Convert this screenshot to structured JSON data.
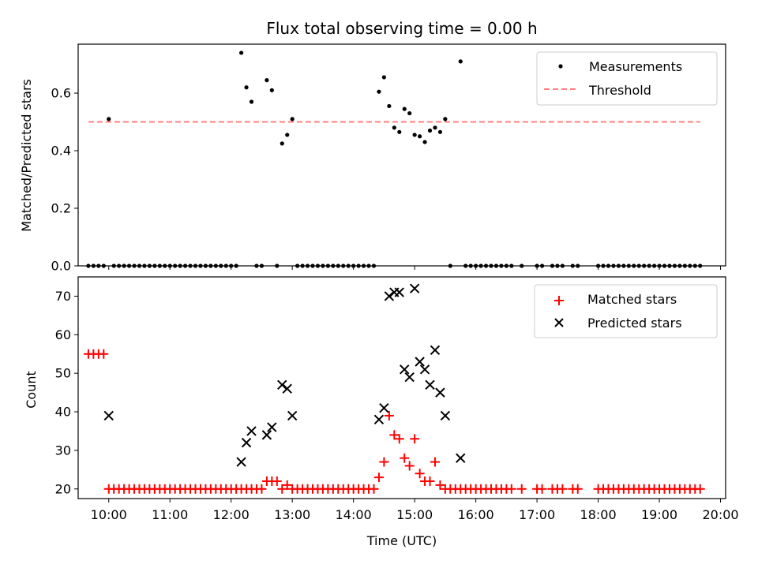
{
  "figure": {
    "title": "Flux total observing time = 0.00 h"
  },
  "chart_data": [
    {
      "type": "scatter",
      "ylabel": "Matched/Predicted stars",
      "xlabel": "",
      "xlim": [
        "09:30",
        "20:05"
      ],
      "ylim": [
        0,
        0.77
      ],
      "yticks": [
        0.0,
        0.2,
        0.4,
        0.6
      ],
      "ytick_labels": [
        "0.0",
        "0.2",
        "0.4",
        "0.6"
      ],
      "xticks": [
        "10:00",
        "11:00",
        "12:00",
        "13:00",
        "14:00",
        "15:00",
        "16:00",
        "17:00",
        "18:00",
        "19:00",
        "20:00"
      ],
      "show_xtick_labels": false,
      "grid": false,
      "legend": {
        "position": "top-right",
        "entries": [
          "Measurements",
          "Threshold"
        ]
      },
      "threshold": {
        "name": "Threshold",
        "y": 0.5,
        "x_start": "09:40",
        "x_end": "19:40",
        "color": "#ff7f7f",
        "style": "dashed"
      },
      "series": [
        {
          "name": "Measurements",
          "color": "#000000",
          "marker": "dot",
          "points": [
            [
              "09:40",
              0.0
            ],
            [
              "09:45",
              0.0
            ],
            [
              "09:50",
              0.0
            ],
            [
              "09:55",
              0.0
            ],
            [
              "10:00",
              0.51
            ],
            [
              "10:05",
              0.0
            ],
            [
              "10:10",
              0.0
            ],
            [
              "10:15",
              0.0
            ],
            [
              "10:20",
              0.0
            ],
            [
              "10:25",
              0.0
            ],
            [
              "10:30",
              0.0
            ],
            [
              "10:35",
              0.0
            ],
            [
              "10:40",
              0.0
            ],
            [
              "10:45",
              0.0
            ],
            [
              "10:50",
              0.0
            ],
            [
              "10:55",
              0.0
            ],
            [
              "11:00",
              0.0
            ],
            [
              "11:05",
              0.0
            ],
            [
              "11:10",
              0.0
            ],
            [
              "11:15",
              0.0
            ],
            [
              "11:20",
              0.0
            ],
            [
              "11:25",
              0.0
            ],
            [
              "11:30",
              0.0
            ],
            [
              "11:35",
              0.0
            ],
            [
              "11:40",
              0.0
            ],
            [
              "11:45",
              0.0
            ],
            [
              "11:50",
              0.0
            ],
            [
              "11:55",
              0.0
            ],
            [
              "12:00",
              0.0
            ],
            [
              "12:05",
              0.0
            ],
            [
              "12:10",
              0.74
            ],
            [
              "12:15",
              0.62
            ],
            [
              "12:20",
              0.57
            ],
            [
              "12:25",
              0.0
            ],
            [
              "12:30",
              0.0
            ],
            [
              "12:35",
              0.645
            ],
            [
              "12:40",
              0.61
            ],
            [
              "12:45",
              0.0
            ],
            [
              "12:50",
              0.425
            ],
            [
              "12:55",
              0.455
            ],
            [
              "13:00",
              0.51
            ],
            [
              "13:05",
              0.0
            ],
            [
              "13:10",
              0.0
            ],
            [
              "13:15",
              0.0
            ],
            [
              "13:20",
              0.0
            ],
            [
              "13:25",
              0.0
            ],
            [
              "13:30",
              0.0
            ],
            [
              "13:35",
              0.0
            ],
            [
              "13:40",
              0.0
            ],
            [
              "13:45",
              0.0
            ],
            [
              "13:50",
              0.0
            ],
            [
              "13:55",
              0.0
            ],
            [
              "14:00",
              0.0
            ],
            [
              "14:05",
              0.0
            ],
            [
              "14:10",
              0.0
            ],
            [
              "14:15",
              0.0
            ],
            [
              "14:20",
              0.0
            ],
            [
              "14:25",
              0.605
            ],
            [
              "14:30",
              0.655
            ],
            [
              "14:35",
              0.555
            ],
            [
              "14:40",
              0.48
            ],
            [
              "14:45",
              0.465
            ],
            [
              "14:50",
              0.545
            ],
            [
              "14:55",
              0.53
            ],
            [
              "15:00",
              0.455
            ],
            [
              "15:05",
              0.45
            ],
            [
              "15:10",
              0.43
            ],
            [
              "15:15",
              0.47
            ],
            [
              "15:20",
              0.48
            ],
            [
              "15:25",
              0.465
            ],
            [
              "15:30",
              0.51
            ],
            [
              "15:35",
              0.0
            ],
            [
              "15:45",
              0.71
            ],
            [
              "15:50",
              0.0
            ],
            [
              "15:55",
              0.0
            ],
            [
              "16:00",
              0.0
            ],
            [
              "16:05",
              0.0
            ],
            [
              "16:10",
              0.0
            ],
            [
              "16:15",
              0.0
            ],
            [
              "16:20",
              0.0
            ],
            [
              "16:25",
              0.0
            ],
            [
              "16:30",
              0.0
            ],
            [
              "16:35",
              0.0
            ],
            [
              "16:45",
              0.0
            ],
            [
              "17:00",
              0.0
            ],
            [
              "17:05",
              0.0
            ],
            [
              "17:15",
              0.0
            ],
            [
              "17:20",
              0.0
            ],
            [
              "17:25",
              0.0
            ],
            [
              "17:35",
              0.0
            ],
            [
              "17:40",
              0.0
            ],
            [
              "18:00",
              0.0
            ],
            [
              "18:05",
              0.0
            ],
            [
              "18:10",
              0.0
            ],
            [
              "18:15",
              0.0
            ],
            [
              "18:20",
              0.0
            ],
            [
              "18:25",
              0.0
            ],
            [
              "18:30",
              0.0
            ],
            [
              "18:35",
              0.0
            ],
            [
              "18:40",
              0.0
            ],
            [
              "18:45",
              0.0
            ],
            [
              "18:50",
              0.0
            ],
            [
              "18:55",
              0.0
            ],
            [
              "19:00",
              0.0
            ],
            [
              "19:05",
              0.0
            ],
            [
              "19:10",
              0.0
            ],
            [
              "19:15",
              0.0
            ],
            [
              "19:20",
              0.0
            ],
            [
              "19:25",
              0.0
            ],
            [
              "19:30",
              0.0
            ],
            [
              "19:35",
              0.0
            ],
            [
              "19:40",
              0.0
            ]
          ]
        }
      ]
    },
    {
      "type": "scatter",
      "ylabel": "Count",
      "xlabel": "Time (UTC)",
      "xlim": [
        "09:30",
        "20:05"
      ],
      "ylim": [
        17.5,
        75
      ],
      "yticks": [
        20,
        30,
        40,
        50,
        60,
        70
      ],
      "ytick_labels": [
        "20",
        "30",
        "40",
        "50",
        "60",
        "70"
      ],
      "xticks": [
        "10:00",
        "11:00",
        "12:00",
        "13:00",
        "14:00",
        "15:00",
        "16:00",
        "17:00",
        "18:00",
        "19:00",
        "20:00"
      ],
      "xtick_labels": [
        "10:00",
        "11:00",
        "12:00",
        "13:00",
        "14:00",
        "15:00",
        "16:00",
        "17:00",
        "18:00",
        "19:00",
        "20:00"
      ],
      "show_xtick_labels": true,
      "grid": false,
      "legend": {
        "position": "top-right",
        "entries": [
          "Matched stars",
          "Predicted stars"
        ]
      },
      "series": [
        {
          "name": "Matched stars",
          "color": "#ff0000",
          "marker": "plus",
          "points": [
            [
              "09:40",
              55
            ],
            [
              "09:45",
              55
            ],
            [
              "09:50",
              55
            ],
            [
              "09:55",
              55
            ],
            [
              "10:00",
              20
            ],
            [
              "10:05",
              20
            ],
            [
              "10:10",
              20
            ],
            [
              "10:15",
              20
            ],
            [
              "10:20",
              20
            ],
            [
              "10:25",
              20
            ],
            [
              "10:30",
              20
            ],
            [
              "10:35",
              20
            ],
            [
              "10:40",
              20
            ],
            [
              "10:45",
              20
            ],
            [
              "10:50",
              20
            ],
            [
              "10:55",
              20
            ],
            [
              "11:00",
              20
            ],
            [
              "11:05",
              20
            ],
            [
              "11:10",
              20
            ],
            [
              "11:15",
              20
            ],
            [
              "11:20",
              20
            ],
            [
              "11:25",
              20
            ],
            [
              "11:30",
              20
            ],
            [
              "11:35",
              20
            ],
            [
              "11:40",
              20
            ],
            [
              "11:45",
              20
            ],
            [
              "11:50",
              20
            ],
            [
              "11:55",
              20
            ],
            [
              "12:00",
              20
            ],
            [
              "12:05",
              20
            ],
            [
              "12:10",
              20
            ],
            [
              "12:15",
              20
            ],
            [
              "12:20",
              20
            ],
            [
              "12:25",
              20
            ],
            [
              "12:30",
              20
            ],
            [
              "12:35",
              22
            ],
            [
              "12:40",
              22
            ],
            [
              "12:45",
              22
            ],
            [
              "12:50",
              20
            ],
            [
              "12:55",
              21
            ],
            [
              "13:00",
              20
            ],
            [
              "13:05",
              20
            ],
            [
              "13:10",
              20
            ],
            [
              "13:15",
              20
            ],
            [
              "13:20",
              20
            ],
            [
              "13:25",
              20
            ],
            [
              "13:30",
              20
            ],
            [
              "13:35",
              20
            ],
            [
              "13:40",
              20
            ],
            [
              "13:45",
              20
            ],
            [
              "13:50",
              20
            ],
            [
              "13:55",
              20
            ],
            [
              "14:00",
              20
            ],
            [
              "14:05",
              20
            ],
            [
              "14:10",
              20
            ],
            [
              "14:15",
              20
            ],
            [
              "14:20",
              20
            ],
            [
              "14:25",
              23
            ],
            [
              "14:30",
              27
            ],
            [
              "14:35",
              39
            ],
            [
              "14:40",
              34
            ],
            [
              "14:45",
              33
            ],
            [
              "14:50",
              28
            ],
            [
              "14:55",
              26
            ],
            [
              "15:00",
              33
            ],
            [
              "15:05",
              24
            ],
            [
              "15:10",
              22
            ],
            [
              "15:15",
              22
            ],
            [
              "15:20",
              27
            ],
            [
              "15:25",
              21
            ],
            [
              "15:30",
              20
            ],
            [
              "15:35",
              20
            ],
            [
              "15:40",
              20
            ],
            [
              "15:45",
              20
            ],
            [
              "15:50",
              20
            ],
            [
              "15:55",
              20
            ],
            [
              "16:00",
              20
            ],
            [
              "16:05",
              20
            ],
            [
              "16:10",
              20
            ],
            [
              "16:15",
              20
            ],
            [
              "16:20",
              20
            ],
            [
              "16:25",
              20
            ],
            [
              "16:30",
              20
            ],
            [
              "16:35",
              20
            ],
            [
              "16:45",
              20
            ],
            [
              "17:00",
              20
            ],
            [
              "17:05",
              20
            ],
            [
              "17:15",
              20
            ],
            [
              "17:20",
              20
            ],
            [
              "17:25",
              20
            ],
            [
              "17:35",
              20
            ],
            [
              "17:40",
              20
            ],
            [
              "18:00",
              20
            ],
            [
              "18:05",
              20
            ],
            [
              "18:10",
              20
            ],
            [
              "18:15",
              20
            ],
            [
              "18:20",
              20
            ],
            [
              "18:25",
              20
            ],
            [
              "18:30",
              20
            ],
            [
              "18:35",
              20
            ],
            [
              "18:40",
              20
            ],
            [
              "18:45",
              20
            ],
            [
              "18:50",
              20
            ],
            [
              "18:55",
              20
            ],
            [
              "19:00",
              20
            ],
            [
              "19:05",
              20
            ],
            [
              "19:10",
              20
            ],
            [
              "19:15",
              20
            ],
            [
              "19:20",
              20
            ],
            [
              "19:25",
              20
            ],
            [
              "19:30",
              20
            ],
            [
              "19:35",
              20
            ],
            [
              "19:40",
              20
            ]
          ]
        },
        {
          "name": "Predicted stars",
          "color": "#000000",
          "marker": "x",
          "points": [
            [
              "10:00",
              39
            ],
            [
              "12:10",
              27
            ],
            [
              "12:15",
              32
            ],
            [
              "12:20",
              35
            ],
            [
              "12:35",
              34
            ],
            [
              "12:40",
              36
            ],
            [
              "12:50",
              47
            ],
            [
              "12:55",
              46
            ],
            [
              "13:00",
              39
            ],
            [
              "14:25",
              38
            ],
            [
              "14:30",
              41
            ],
            [
              "14:35",
              70
            ],
            [
              "14:40",
              71
            ],
            [
              "14:45",
              71
            ],
            [
              "14:50",
              51
            ],
            [
              "14:55",
              49
            ],
            [
              "15:00",
              72
            ],
            [
              "15:05",
              53
            ],
            [
              "15:10",
              51
            ],
            [
              "15:15",
              47
            ],
            [
              "15:20",
              56
            ],
            [
              "15:25",
              45
            ],
            [
              "15:30",
              39
            ],
            [
              "15:45",
              28
            ]
          ]
        }
      ]
    }
  ]
}
